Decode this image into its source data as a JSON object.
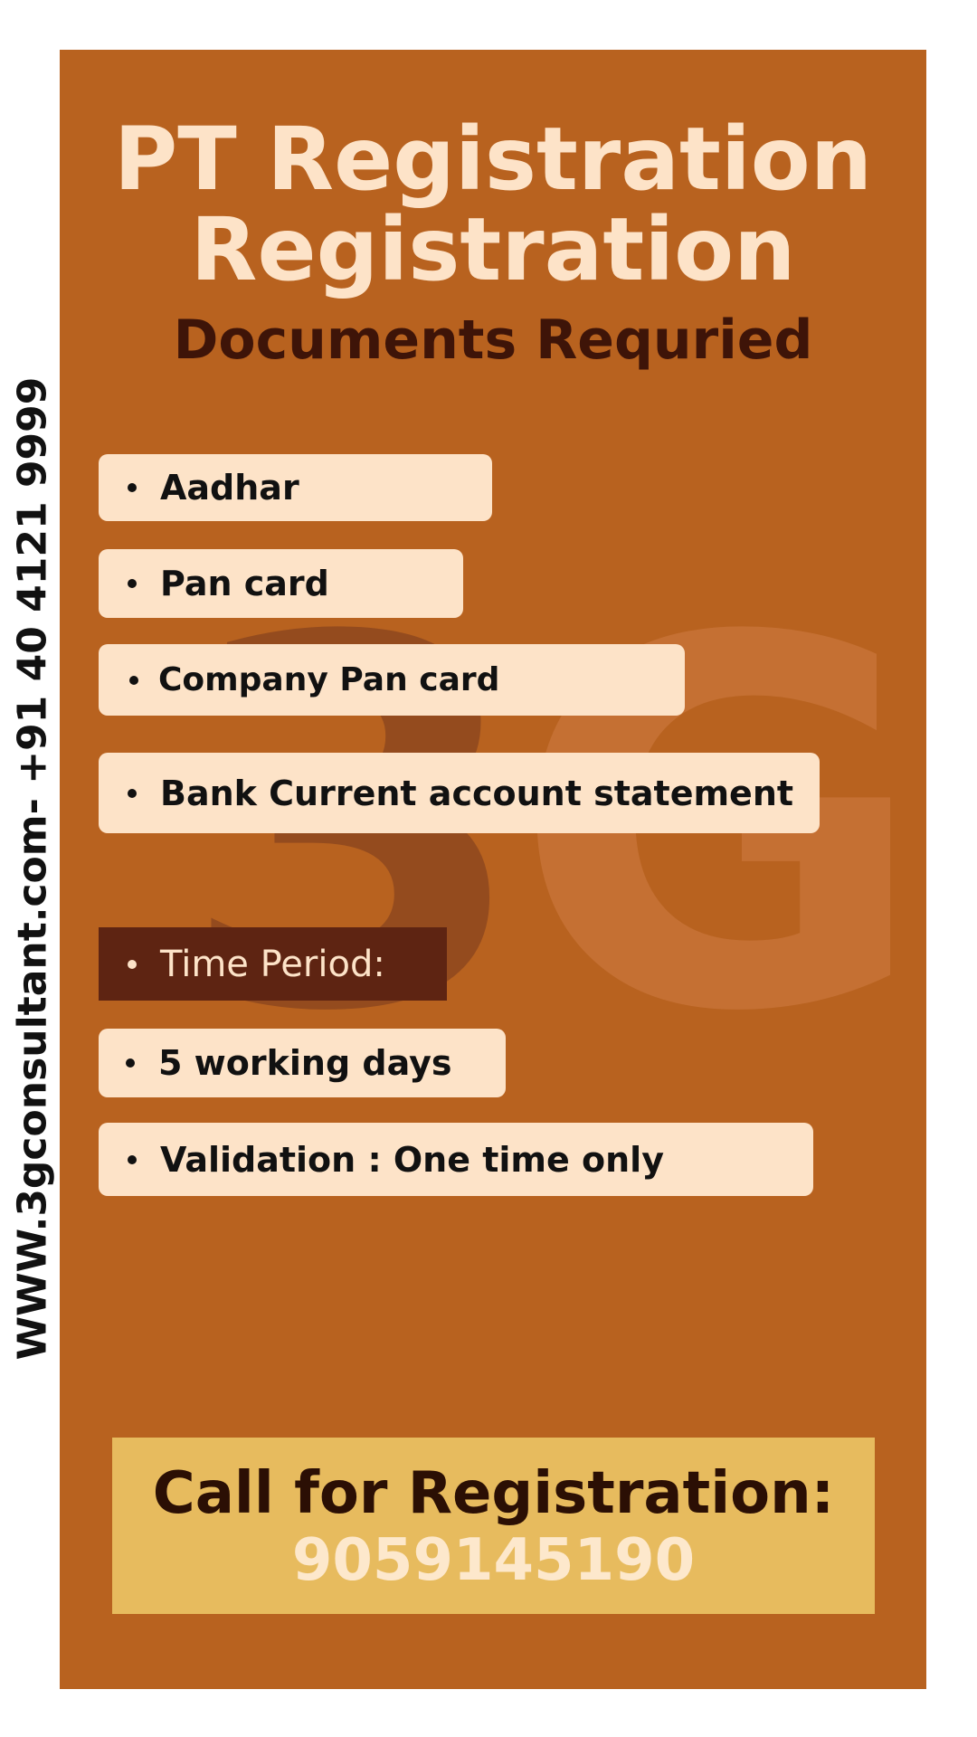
{
  "side_text": "WWW.3gconsultant.com- +91 40 4121 9999",
  "watermark": "3G",
  "title_line1": "PT Registration",
  "title_line2": "Registration",
  "subtitle": "Documents Requried",
  "documents": [
    "Aadhar",
    "Pan card",
    "Company Pan card",
    "Bank Current account statement"
  ],
  "time_period_label": "Time Period:",
  "details": [
    "5 working days",
    "Validation : One time only"
  ],
  "cta": {
    "label": "Call for Registration:",
    "phone": "9059145190"
  },
  "colors": {
    "panel": "#b8621f",
    "cream": "#fde3c8",
    "dark_brown": "#3e1408",
    "cta_background": "#e7bb5e"
  }
}
